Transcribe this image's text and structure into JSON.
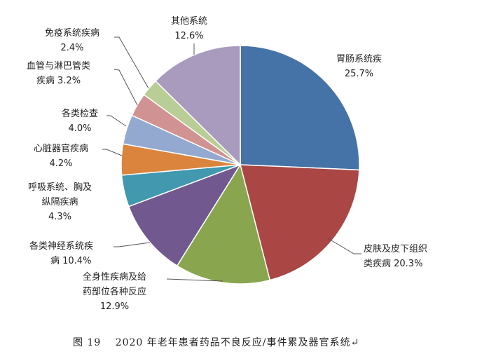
{
  "chart_data": {
    "type": "pie",
    "start_angle": "12 o'clock, clockwise",
    "slices": [
      {
        "label_lines": [
          "胃肠系统疾",
          "25.7%"
        ],
        "value": 25.7,
        "color": "#4572A7"
      },
      {
        "label_lines": [
          "皮肤及皮下组织",
          "类疾病 20.3%"
        ],
        "value": 20.3,
        "color": "#AA4643"
      },
      {
        "label_lines": [
          "全身性疾病及给",
          "药部位各种反应",
          "12.9%"
        ],
        "value": 12.9,
        "color": "#89A54E"
      },
      {
        "label_lines": [
          "各类神经系统疾",
          "病 10.4%"
        ],
        "value": 10.4,
        "color": "#71588F"
      },
      {
        "label_lines": [
          "呼吸系统、胸及",
          "纵隔疾病",
          "4.3%"
        ],
        "value": 4.3,
        "color": "#4198AF"
      },
      {
        "label_lines": [
          "心脏器官疾病",
          "4.2%"
        ],
        "value": 4.2,
        "color": "#DB843D"
      },
      {
        "label_lines": [
          "各类检查",
          "4.0%"
        ],
        "value": 4.0,
        "color": "#93A9CF"
      },
      {
        "label_lines": [
          "血管与淋巴管类",
          "疾病 3.2%"
        ],
        "value": 3.2,
        "color": "#D19392"
      },
      {
        "label_lines": [
          "免疫系统疾病",
          "2.4%"
        ],
        "value": 2.4,
        "color": "#B9CD96"
      },
      {
        "label_lines": [
          "其他系统",
          "12.6%"
        ],
        "value": 12.6,
        "color": "#A99BBD"
      }
    ]
  },
  "caption": "图 19　 2020 年老年患者药品不良反应/事件累及器官系统↵"
}
